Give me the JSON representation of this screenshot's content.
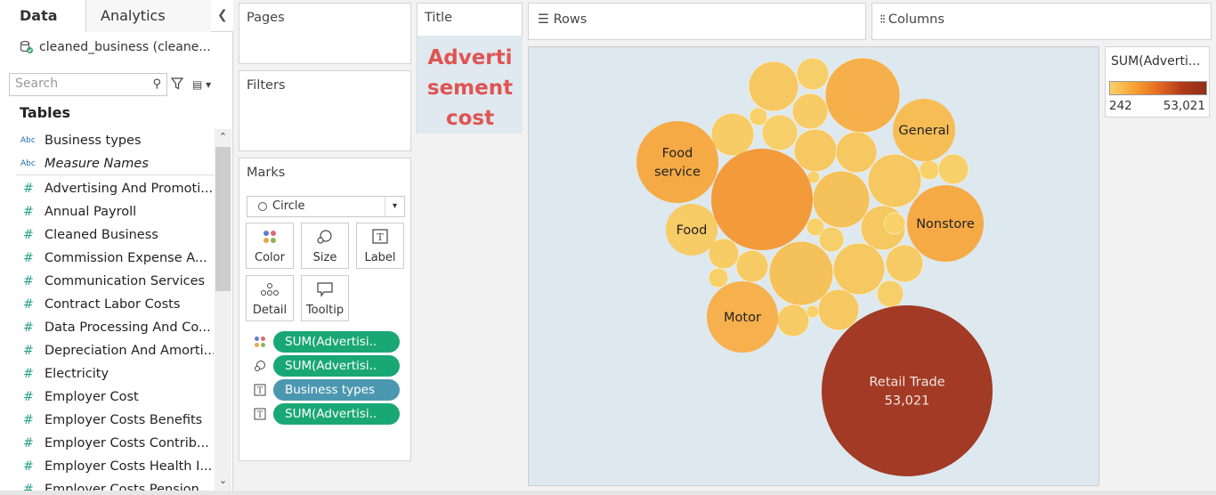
{
  "left_pane": {
    "tabs": [
      "Data",
      "Analytics"
    ],
    "datasource": "cleaned_business (cleane...",
    "search_placeholder": "Search",
    "tables_label": "Tables",
    "fields": [
      {
        "type": "Abc",
        "label": "Business types",
        "italic": false
      },
      {
        "type": "Abc",
        "label": "Measure Names",
        "italic": true
      },
      {
        "type": "#",
        "label": "Advertising And Promoti...",
        "italic": false
      },
      {
        "type": "#",
        "label": "Annual Payroll",
        "italic": false
      },
      {
        "type": "#",
        "label": "Cleaned Business",
        "italic": false
      },
      {
        "type": "#",
        "label": "Commission Expense A...",
        "italic": false
      },
      {
        "type": "#",
        "label": "Communication Services",
        "italic": false
      },
      {
        "type": "#",
        "label": "Contract Labor Costs",
        "italic": false
      },
      {
        "type": "#",
        "label": "Data Processing And Co...",
        "italic": false
      },
      {
        "type": "#",
        "label": "Depreciation And Amorti...",
        "italic": false
      },
      {
        "type": "#",
        "label": "Electricity",
        "italic": false
      },
      {
        "type": "#",
        "label": "Employer Cost",
        "italic": false
      },
      {
        "type": "#",
        "label": "Employer Costs Benefits",
        "italic": false
      },
      {
        "type": "#",
        "label": "Employer Costs Contrib...",
        "italic": false
      },
      {
        "type": "#",
        "label": "Employer Costs Health I...",
        "italic": false
      },
      {
        "type": "#",
        "label": "Employer Costs Pension...",
        "italic": false
      }
    ]
  },
  "shelves": {
    "pages": "Pages",
    "filters": "Filters",
    "marks": "Marks",
    "mark_type": "Circle",
    "mark_buttons": [
      "Color",
      "Size",
      "Label",
      "Detail",
      "Tooltip"
    ],
    "pills": [
      {
        "icon": "color-icon",
        "label": "SUM(Advertisi..",
        "color": "#1aa776"
      },
      {
        "icon": "size-icon",
        "label": "SUM(Advertisi..",
        "color": "#1aa776"
      },
      {
        "icon": "label-icon",
        "label": "Business types",
        "color": "#4c97b0"
      },
      {
        "icon": "label-icon",
        "label": "SUM(Advertisi..",
        "color": "#1aa776"
      }
    ],
    "title_card": "Title",
    "title_text": "Advertisement cost",
    "rows": "Rows",
    "columns": "Columns"
  },
  "legend": {
    "title": "SUM(Adverti...",
    "min": "242",
    "max": "53,021"
  },
  "chart_data": {
    "type": "packed-bubble",
    "measure": "SUM(Advertising)",
    "bubbles": [
      {
        "label": "Retail Trade",
        "value_label": "53,021",
        "value": 53021
      },
      {
        "label": "Food service",
        "value": 12000
      },
      {
        "label": "Motor",
        "value": 8000
      },
      {
        "label": "Nonstore",
        "value": 9500
      },
      {
        "label": "General",
        "value": 6200
      },
      {
        "label": "Food",
        "value": 4000
      }
    ]
  }
}
